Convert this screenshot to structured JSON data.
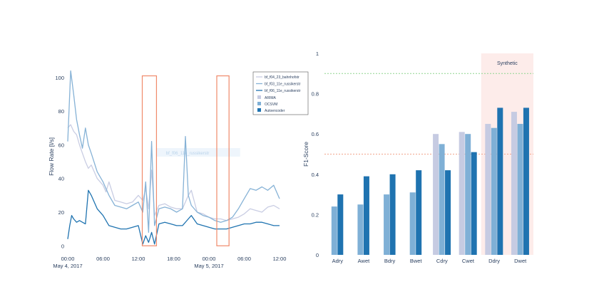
{
  "chart_data": [
    {
      "type": "line",
      "ylabel": "Flow Rate [l/s]",
      "ylim": [
        -2,
        108
      ],
      "yticks": [
        0,
        20,
        40,
        60,
        80,
        100
      ],
      "x_range": [
        "2017-05-04 00:00",
        "2017-05-05 12:00"
      ],
      "xticks": [
        {
          "value": "2017-05-04 00:00",
          "label": "00:00",
          "sublabel": "May 4, 2017"
        },
        {
          "value": "2017-05-04 06:00",
          "label": "06:00",
          "sublabel": ""
        },
        {
          "value": "2017-05-04 12:00",
          "label": "12:00",
          "sublabel": ""
        },
        {
          "value": "2017-05-04 18:00",
          "label": "18:00",
          "sublabel": ""
        },
        {
          "value": "2017-05-05 00:00",
          "label": "00:00",
          "sublabel": "May 5, 2017"
        },
        {
          "value": "2017-05-05 06:00",
          "label": "06:00",
          "sublabel": ""
        },
        {
          "value": "2017-05-05 12:00",
          "label": "12:00",
          "sublabel": ""
        }
      ],
      "colors": [
        "#c9cde3",
        "#86b2d6",
        "#1f73b0"
      ],
      "highlight_color": "#f08a6a",
      "highlight_windows": [
        {
          "start": "2017-05-04 12:40",
          "end": "2017-05-04 15:05",
          "ymin": 0,
          "ymax": 101
        },
        {
          "start": "2017-05-05 01:20",
          "end": "2017-05-05 03:25",
          "ymin": 0,
          "ymax": 101
        }
      ],
      "legend_position": "top-right",
      "hover_label": "bf_f06_11e_russikerstr",
      "series": [
        {
          "name": "bf_f04_23_bahnhofstr",
          "x": [
            "2017-05-04 00:00",
            "2017-05-04 00:30",
            "2017-05-04 01:00",
            "2017-05-04 01:30",
            "2017-05-04 02:00",
            "2017-05-04 02:30",
            "2017-05-04 03:00",
            "2017-05-04 03:30",
            "2017-05-04 04:00",
            "2017-05-04 05:00",
            "2017-05-04 06:00",
            "2017-05-04 06:30",
            "2017-05-04 07:00",
            "2017-05-04 08:00",
            "2017-05-04 09:00",
            "2017-05-04 10:00",
            "2017-05-04 11:00",
            "2017-05-04 12:00",
            "2017-05-04 12:45",
            "2017-05-04 13:15",
            "2017-05-04 13:45",
            "2017-05-04 14:15",
            "2017-05-04 14:45",
            "2017-05-04 15:30",
            "2017-05-04 16:30",
            "2017-05-04 17:30",
            "2017-05-04 18:30",
            "2017-05-04 19:30",
            "2017-05-04 20:30",
            "2017-05-04 21:00",
            "2017-05-04 22:00",
            "2017-05-04 23:00",
            "2017-05-05 00:00",
            "2017-05-05 01:00",
            "2017-05-05 02:00",
            "2017-05-05 03:00",
            "2017-05-05 04:00",
            "2017-05-05 05:00",
            "2017-05-05 06:00",
            "2017-05-05 07:00",
            "2017-05-05 08:00",
            "2017-05-05 09:00",
            "2017-05-05 10:00",
            "2017-05-05 11:00",
            "2017-05-05 12:00"
          ],
          "y": [
            70,
            72,
            68,
            66,
            60,
            55,
            50,
            46,
            48,
            40,
            36,
            32,
            38,
            27,
            26,
            25,
            26,
            30,
            27,
            34,
            22,
            45,
            18,
            24,
            25,
            23,
            22,
            22,
            30,
            33,
            20,
            19,
            17,
            16,
            16,
            15,
            16,
            17,
            19,
            22,
            21,
            20,
            23,
            24,
            22
          ]
        },
        {
          "name": "bf_f03_11e_russikerstr",
          "x": [
            "2017-05-04 00:00",
            "2017-05-04 00:30",
            "2017-05-04 01:00",
            "2017-05-04 01:30",
            "2017-05-04 02:00",
            "2017-05-04 02:30",
            "2017-05-04 03:00",
            "2017-05-04 03:30",
            "2017-05-04 04:00",
            "2017-05-04 05:00",
            "2017-05-04 06:00",
            "2017-05-04 06:30",
            "2017-05-04 07:00",
            "2017-05-04 08:00",
            "2017-05-04 09:00",
            "2017-05-04 10:00",
            "2017-05-04 11:00",
            "2017-05-04 12:00",
            "2017-05-04 12:45",
            "2017-05-04 13:15",
            "2017-05-04 13:45",
            "2017-05-04 14:15",
            "2017-05-04 14:45",
            "2017-05-04 15:30",
            "2017-05-04 16:30",
            "2017-05-04 17:30",
            "2017-05-04 18:30",
            "2017-05-04 19:30",
            "2017-05-04 20:00",
            "2017-05-04 20:30",
            "2017-05-04 21:00",
            "2017-05-04 22:00",
            "2017-05-04 23:00",
            "2017-05-05 00:00",
            "2017-05-05 01:00",
            "2017-05-05 02:00",
            "2017-05-05 03:00",
            "2017-05-05 04:00",
            "2017-05-05 05:00",
            "2017-05-05 06:00",
            "2017-05-05 07:00",
            "2017-05-05 08:00",
            "2017-05-05 09:00",
            "2017-05-05 10:00",
            "2017-05-05 11:00",
            "2017-05-05 12:00"
          ],
          "y": [
            62,
            104,
            90,
            75,
            66,
            58,
            70,
            60,
            55,
            44,
            38,
            34,
            30,
            24,
            23,
            22,
            24,
            26,
            20,
            38,
            8,
            62,
            12,
            22,
            23,
            22,
            20,
            22,
            65,
            30,
            24,
            20,
            18,
            17,
            15,
            14,
            15,
            17,
            22,
            28,
            34,
            33,
            35,
            33,
            36,
            28
          ]
        },
        {
          "name": "bf_f06_11e_russikerstr",
          "x": [
            "2017-05-04 00:00",
            "2017-05-04 00:20",
            "2017-05-04 00:40",
            "2017-05-04 01:00",
            "2017-05-04 01:30",
            "2017-05-04 02:00",
            "2017-05-04 02:30",
            "2017-05-04 03:00",
            "2017-05-04 03:30",
            "2017-05-04 04:00",
            "2017-05-04 05:00",
            "2017-05-04 06:00",
            "2017-05-04 07:00",
            "2017-05-04 08:00",
            "2017-05-04 09:00",
            "2017-05-04 10:00",
            "2017-05-04 11:00",
            "2017-05-04 12:00",
            "2017-05-04 12:45",
            "2017-05-04 13:15",
            "2017-05-04 13:45",
            "2017-05-04 14:15",
            "2017-05-04 14:45",
            "2017-05-04 15:30",
            "2017-05-04 16:30",
            "2017-05-04 17:30",
            "2017-05-04 18:30",
            "2017-05-04 19:30",
            "2017-05-04 20:30",
            "2017-05-04 21:00",
            "2017-05-04 22:00",
            "2017-05-04 23:00",
            "2017-05-05 00:00",
            "2017-05-05 01:00",
            "2017-05-05 02:00",
            "2017-05-05 03:00",
            "2017-05-05 04:00",
            "2017-05-05 05:00",
            "2017-05-05 06:00",
            "2017-05-05 07:00",
            "2017-05-05 08:00",
            "2017-05-05 09:00",
            "2017-05-05 10:00",
            "2017-05-05 11:00",
            "2017-05-05 12:00"
          ],
          "y": [
            4,
            12,
            18,
            16,
            14,
            15,
            14,
            13,
            33,
            30,
            22,
            18,
            12,
            11,
            10,
            10,
            11,
            12,
            1,
            6,
            2,
            8,
            1,
            13,
            14,
            13,
            12,
            12,
            16,
            18,
            13,
            12,
            11,
            10,
            10,
            10,
            11,
            12,
            13,
            13,
            14,
            14,
            13,
            12,
            12
          ]
        }
      ]
    },
    {
      "type": "bar",
      "ylabel": "F1-Score",
      "ylim": [
        0,
        1
      ],
      "yticks": [
        0,
        0.2,
        0.4,
        0.6,
        0.8,
        1
      ],
      "categories": [
        "Adry",
        "Awet",
        "Bdry",
        "Bwet",
        "Cdry",
        "Cwet",
        "Ddry",
        "Dwet"
      ],
      "colors": [
        "#c6cbe2",
        "#7fb0d6",
        "#1f73b0"
      ],
      "synthetic_label": "Synthetic",
      "synthetic_categories": [
        "Ddry",
        "Dwet"
      ],
      "synthetic_shade": "#fdecea",
      "reference_lines": [
        {
          "value": 0.9,
          "color": "#8fd68f"
        },
        {
          "value": 0.5,
          "color": "#f2a48c"
        }
      ],
      "series": [
        {
          "name": "ARIMA",
          "values": [
            null,
            null,
            null,
            null,
            0.6,
            0.61,
            0.65,
            0.71
          ]
        },
        {
          "name": "OCSVM",
          "values": [
            0.24,
            0.25,
            0.3,
            0.31,
            0.55,
            0.6,
            0.63,
            0.65
          ]
        },
        {
          "name": "Autoencoder",
          "values": [
            0.3,
            0.39,
            0.4,
            0.42,
            0.42,
            0.51,
            0.73,
            0.73
          ]
        }
      ]
    }
  ]
}
